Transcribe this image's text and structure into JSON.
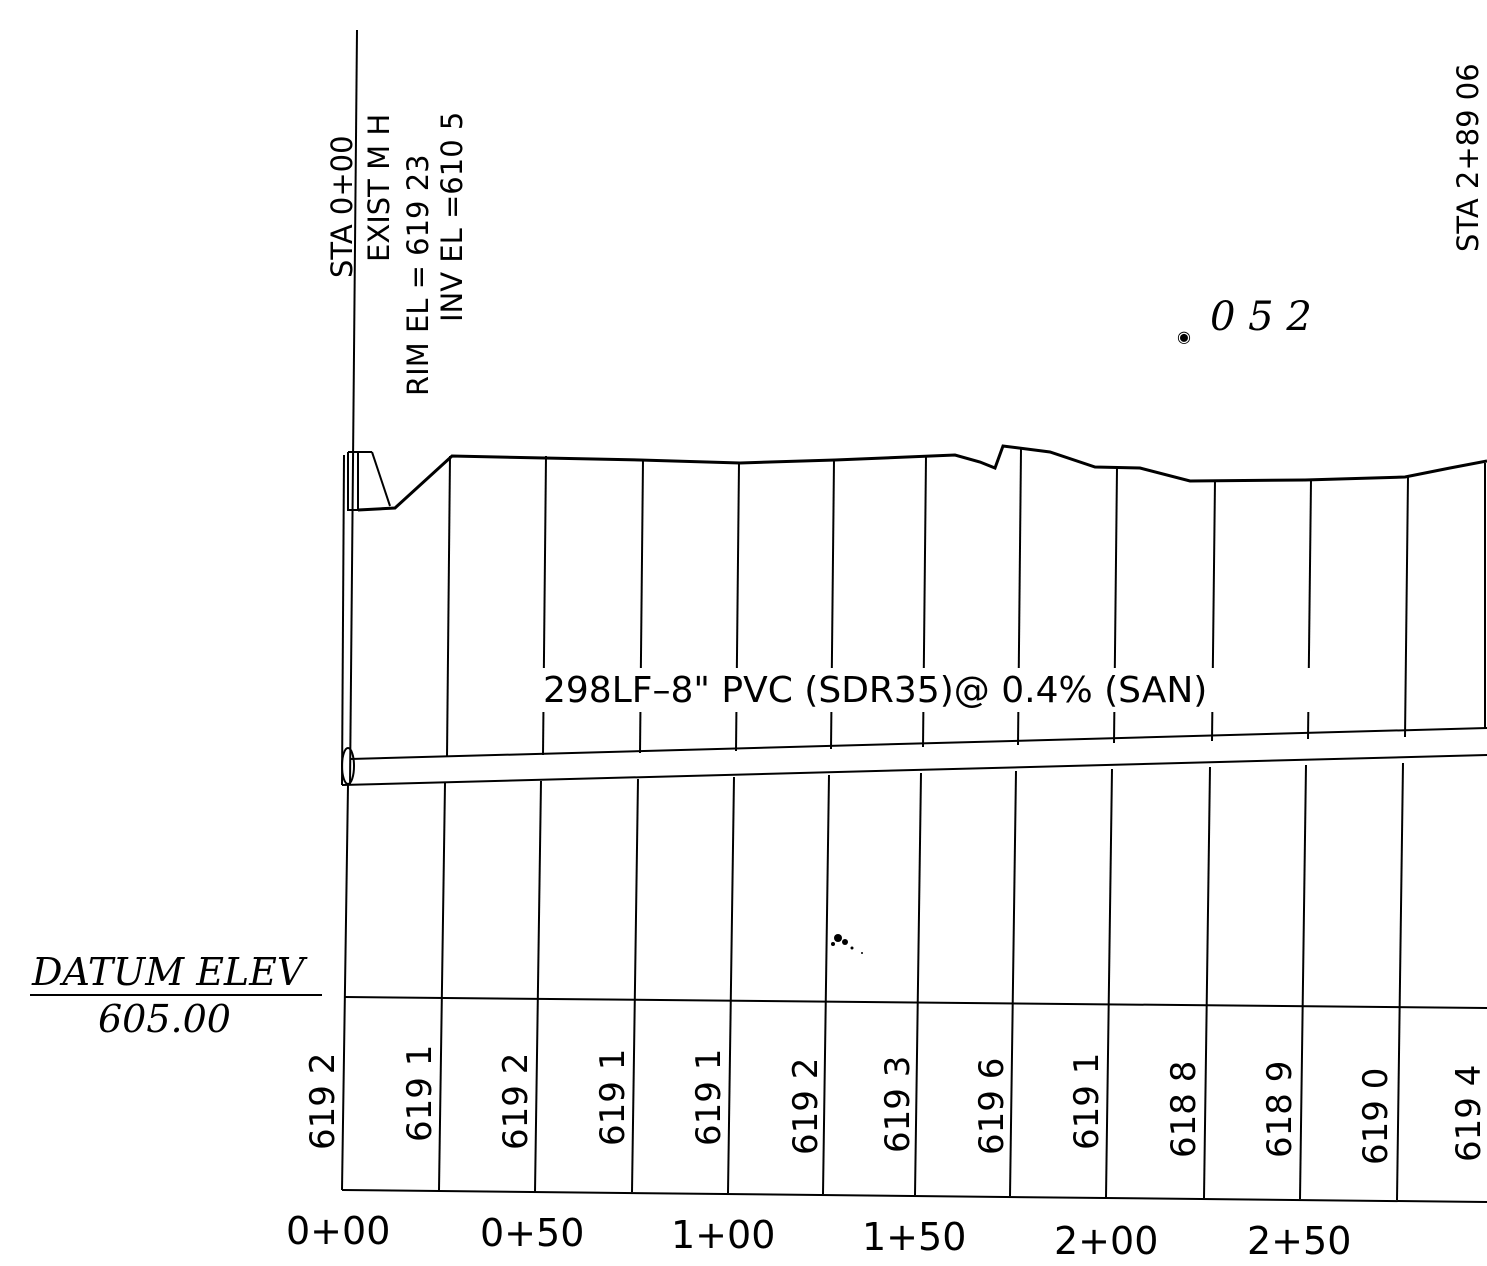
{
  "labels": {
    "sta_start": "STA  0+00",
    "exist_mh": "EXIST M H",
    "rim_el": "RIM  EL  =  619 23",
    "inv_el": "INV EL =610 5",
    "sta_end": "STA  2+89 06",
    "handwritten_note": "0 5 2",
    "pipe_label": "298LF–8\" PVC (SDR35)@ 0.4% (SAN)",
    "datum_label": "DATUM  ELEV",
    "datum_value": "605.00"
  },
  "ground_elevations": [
    "619 2",
    "619 1",
    "619 2",
    "619 1",
    "619 1",
    "619 2",
    "619 3",
    "619 6",
    "619 1",
    "618 8",
    "618 9",
    "619 0",
    "619 4"
  ],
  "stations": [
    "0+00",
    "0+50",
    "1+00",
    "1+50",
    "2+00",
    "2+50"
  ],
  "colors": {
    "ink": "#000000",
    "paper": "#ffffff"
  }
}
